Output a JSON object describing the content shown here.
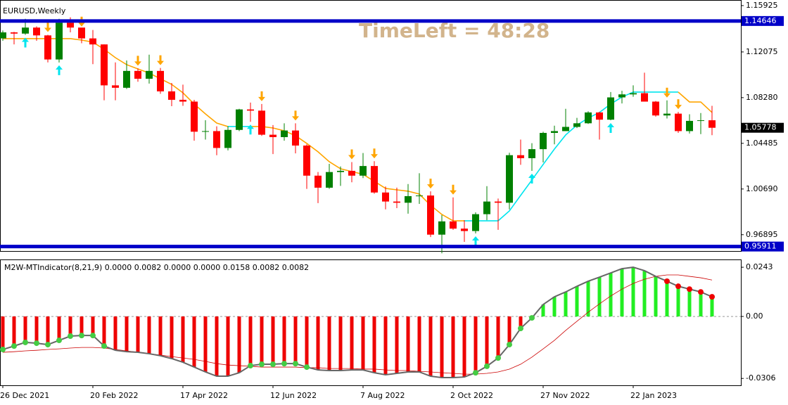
{
  "chart_data": [
    {
      "type": "candlestick",
      "title": "EURUSD,Weekly",
      "timeleft": "TimeLeft = 48:28",
      "categories": [
        "26 Dec 2021",
        null,
        null,
        null,
        null,
        null,
        null,
        null,
        "20 Feb 2022",
        null,
        null,
        null,
        null,
        null,
        null,
        null,
        "17 Apr 2022",
        null,
        null,
        null,
        null,
        null,
        null,
        null,
        "12 Jun 2022",
        null,
        null,
        null,
        null,
        null,
        null,
        null,
        "7 Aug 2022",
        null,
        null,
        null,
        null,
        null,
        null,
        null,
        "2 Oct 2022",
        null,
        null,
        null,
        null,
        null,
        null,
        null,
        "27 Nov 2022",
        null,
        null,
        null,
        null,
        null,
        null,
        null,
        "22 Jan 2023",
        null,
        null,
        null,
        null,
        null,
        null,
        null
      ],
      "open": [
        1.132,
        1.137,
        1.136,
        1.141,
        1.1345,
        1.1145,
        1.145,
        1.141,
        1.132,
        1.127,
        1.093,
        1.091,
        1.105,
        1.0985,
        1.105,
        1.088,
        1.081,
        1.0795,
        1.0545,
        1.055,
        1.041,
        1.056,
        1.073,
        1.072,
        1.052,
        1.05,
        1.0555,
        1.043,
        1.018,
        1.008,
        1.021,
        1.022,
        1.018,
        1.026,
        1.004,
        0.9965,
        0.9955,
        1.001,
        1.0015,
        0.969,
        0.98,
        0.974,
        0.972,
        0.986,
        0.9965,
        0.9955,
        1.035,
        1.0325,
        1.04,
        1.0535,
        1.055,
        1.0585,
        1.0615,
        1.0705,
        1.0645,
        1.083,
        1.0855,
        1.0865,
        1.0795,
        1.068,
        1.0695,
        1.055,
        1.0635,
        1.064
      ],
      "high": [
        1.1386,
        1.1375,
        1.1483,
        1.142,
        1.135,
        1.1483,
        1.1495,
        1.1395,
        1.139,
        1.127,
        1.1121,
        1.1137,
        1.107,
        1.1185,
        1.1075,
        1.095,
        1.0936,
        1.081,
        1.064,
        1.059,
        1.059,
        1.0735,
        1.0787,
        1.0775,
        1.06,
        1.0615,
        1.0615,
        1.044,
        1.021,
        1.0278,
        1.0256,
        1.0293,
        1.0368,
        1.03,
        1.009,
        1.008,
        1.011,
        1.02,
        1.005,
        0.9853,
        0.9999,
        0.981,
        0.9875,
        1.0093,
        0.999,
        1.037,
        1.048,
        1.045,
        1.0545,
        1.0595,
        1.0735,
        1.066,
        1.0715,
        1.071,
        1.0875,
        1.0885,
        1.093,
        1.1035,
        1.08,
        1.0805,
        1.071,
        1.069,
        1.07,
        1.076
      ],
      "low": [
        1.13,
        1.127,
        1.135,
        1.13,
        1.1121,
        1.112,
        1.137,
        1.128,
        1.1106,
        1.0806,
        1.0806,
        1.09,
        1.096,
        1.0945,
        1.086,
        1.0757,
        1.076,
        1.047,
        1.048,
        1.035,
        1.039,
        1.055,
        1.0627,
        1.051,
        1.0359,
        1.047,
        1.0365,
        1.007,
        0.9952,
        1.007,
        1.0095,
        1.0125,
        1.016,
        1.003,
        0.99,
        0.991,
        0.9864,
        0.9945,
        0.967,
        0.9535,
        0.973,
        0.963,
        0.97,
        0.981,
        0.973,
        0.99,
        1.027,
        1.022,
        1.029,
        1.044,
        1.055,
        1.0575,
        1.061,
        1.048,
        1.064,
        1.078,
        1.0835,
        1.0795,
        1.067,
        1.0655,
        1.0535,
        1.053,
        1.0525,
        1.0516
      ],
      "close": [
        1.137,
        1.136,
        1.141,
        1.1345,
        1.1145,
        1.145,
        1.141,
        1.132,
        1.127,
        1.093,
        1.091,
        1.105,
        1.0985,
        1.105,
        1.088,
        1.081,
        1.0795,
        1.0545,
        1.055,
        1.041,
        1.056,
        1.073,
        1.072,
        1.052,
        1.05,
        1.0555,
        1.043,
        1.018,
        1.008,
        1.021,
        1.022,
        1.018,
        1.026,
        1.004,
        0.9965,
        0.9955,
        1.001,
        1.0015,
        0.969,
        0.98,
        0.974,
        0.972,
        0.986,
        0.9965,
        0.9955,
        1.035,
        1.0325,
        1.04,
        1.0535,
        1.055,
        1.0585,
        1.0615,
        1.0705,
        1.0645,
        1.083,
        1.0855,
        1.0865,
        1.0795,
        1.068,
        1.0695,
        1.055,
        1.0635,
        1.064,
        1.05778
      ],
      "up_color": "#008000",
      "down_color": "#ff0000",
      "trail": {
        "values": [
          1.1318,
          1.1318,
          1.1318,
          1.1318,
          1.1318,
          1.1318,
          1.1318,
          1.1306,
          1.1289,
          1.123,
          1.116,
          1.1102,
          1.1067,
          1.1032,
          1.0985,
          1.0938,
          1.0868,
          1.0775,
          1.0693,
          1.0617,
          1.0588,
          1.0588,
          1.0588,
          1.0588,
          1.0576,
          1.0553,
          1.0512,
          1.0448,
          1.0378,
          1.0296,
          1.0237,
          1.0214,
          1.0191,
          1.0133,
          1.0074,
          1.0062,
          1.0051,
          1.0027,
          0.9934,
          0.9858,
          0.9805,
          0.9805,
          0.9805,
          0.9805,
          0.9805,
          0.9887,
          1.0016,
          1.0144,
          1.0273,
          1.0401,
          1.0518,
          1.06,
          1.0658,
          1.0705,
          1.0775,
          1.0833,
          1.0874,
          1.0874,
          1.0874,
          1.0874,
          1.0874,
          1.0792,
          1.0792,
          1.0705
        ],
        "color": "#ffa500",
        "up_color": "#00e5ee",
        "up_ranges": [
          [
            20,
            22
          ],
          [
            41,
            60
          ]
        ]
      },
      "sell_signals": [
        4,
        7,
        12,
        14,
        23,
        26,
        31,
        33,
        38,
        40,
        59,
        60
      ],
      "sell_color": "#ffa500",
      "buy_signals": [
        2,
        5,
        22,
        42,
        47,
        54
      ],
      "buy_color": "#00e5ee",
      "levels": [
        1.14646,
        0.95911
      ],
      "level_color": "#0000c8",
      "ylim": [
        0.9554,
        1.1639
      ],
      "yticks": [
        0.96895,
        {
          "value": 1.0069,
          "label": "1.00690"
        },
        1.04485,
        {
          "value": 1.0828,
          "label": "1.08280"
        },
        1.12075,
        1.15925
      ]
    },
    {
      "type": "macd",
      "title": "M2W-MTIndicator(8,21,9) 0.0000 0.0082 0.0000 0.0000 0.0158 0.0082 0.0082",
      "values": [
        -0.0163,
        -0.0146,
        -0.0128,
        -0.0132,
        -0.0139,
        -0.0118,
        -0.0097,
        -0.0094,
        -0.0094,
        -0.0146,
        -0.0167,
        -0.0174,
        -0.0177,
        -0.0184,
        -0.0194,
        -0.0208,
        -0.0226,
        -0.025,
        -0.0274,
        -0.0295,
        -0.0295,
        -0.0278,
        -0.0243,
        -0.0236,
        -0.0236,
        -0.0233,
        -0.0233,
        -0.025,
        -0.0264,
        -0.0267,
        -0.0267,
        -0.0264,
        -0.0264,
        -0.0278,
        -0.0288,
        -0.0281,
        -0.0274,
        -0.0274,
        -0.0295,
        -0.0302,
        -0.0302,
        -0.0299,
        -0.0278,
        -0.0246,
        -0.0205,
        -0.0139,
        -0.0059,
        -0.0007,
        0.0059,
        0.0097,
        0.0121,
        0.0149,
        0.0174,
        0.0194,
        0.0215,
        0.0236,
        0.0243,
        0.0226,
        0.0198,
        0.0174,
        0.0149,
        0.0135,
        0.0121,
        0.0097
      ],
      "signal": [
        -0.0177,
        -0.0174,
        -0.017,
        -0.0167,
        -0.0163,
        -0.016,
        -0.0156,
        -0.0153,
        -0.0153,
        -0.0156,
        -0.0163,
        -0.017,
        -0.0177,
        -0.0184,
        -0.0191,
        -0.0198,
        -0.0205,
        -0.0212,
        -0.0222,
        -0.0233,
        -0.024,
        -0.0243,
        -0.0246,
        -0.025,
        -0.025,
        -0.025,
        -0.025,
        -0.0253,
        -0.0253,
        -0.0257,
        -0.0257,
        -0.0257,
        -0.026,
        -0.026,
        -0.0264,
        -0.0267,
        -0.0267,
        -0.0271,
        -0.0274,
        -0.0278,
        -0.0281,
        -0.0285,
        -0.0285,
        -0.0281,
        -0.0274,
        -0.026,
        -0.0236,
        -0.0201,
        -0.016,
        -0.0118,
        -0.0069,
        -0.0024,
        0.0021,
        0.0062,
        0.0101,
        0.0135,
        0.0163,
        0.0184,
        0.0198,
        0.0205,
        0.0205,
        0.0198,
        0.0191,
        0.018
      ],
      "pos_color": "#22ee22",
      "neg_color": "#ee0000",
      "line_color": "#666666",
      "signal_color": "#cc0000",
      "dot_up_color": "#44cc44",
      "dot_down_color": "#ee0000",
      "ylim": [
        -0.034,
        0.0278
      ],
      "yticks": [
        -0.0306,
        {
          "value": 0,
          "label": "0.00"
        },
        0.0243
      ]
    }
  ]
}
